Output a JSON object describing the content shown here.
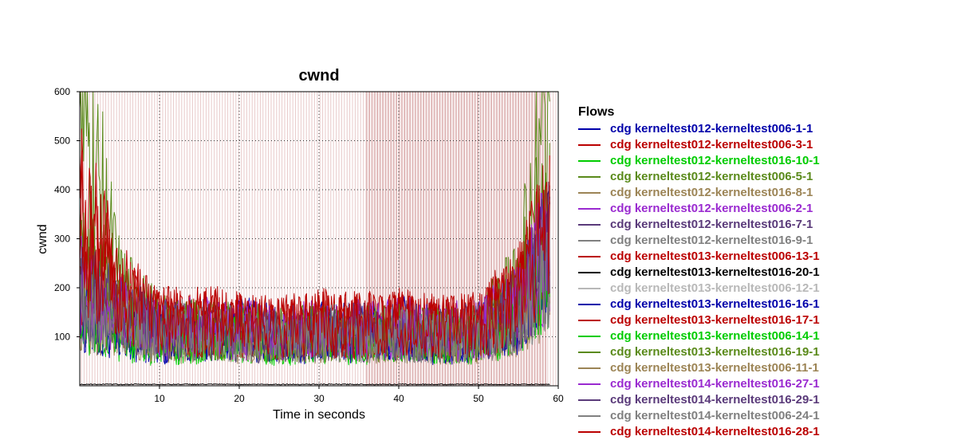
{
  "chart_data": {
    "type": "line",
    "title": "cwnd",
    "xlabel": "Time in seconds",
    "ylabel": "cwnd",
    "xlim": [
      0,
      60
    ],
    "ylim": [
      0,
      600
    ],
    "x_ticks": [
      10,
      20,
      30,
      40,
      50,
      60
    ],
    "y_ticks": [
      100,
      200,
      300,
      400,
      500,
      600
    ],
    "grid": true,
    "legend_title": "Flows",
    "legend_position": "right",
    "background_bands": "dense pale red vertical lines across the full time range",
    "series": [
      {
        "name": "cdg kerneltest012-kerneltest006-1-1",
        "color": "#0000aa",
        "x": [
          0,
          5,
          10,
          15,
          20,
          25,
          30,
          35,
          40,
          45,
          50,
          55,
          59
        ],
        "y": [
          150,
          120,
          100,
          110,
          120,
          105,
          115,
          110,
          120,
          105,
          110,
          150,
          300
        ]
      },
      {
        "name": "cdg kerneltest012-kerneltest006-3-1",
        "color": "#bb0000",
        "x": [
          0,
          5,
          10,
          15,
          20,
          25,
          30,
          35,
          40,
          45,
          50,
          55,
          59
        ],
        "y": [
          300,
          180,
          130,
          140,
          125,
          120,
          130,
          125,
          130,
          120,
          125,
          180,
          330
        ]
      },
      {
        "name": "cdg kerneltest012-kerneltest016-10-1",
        "color": "#00cc00",
        "x": [
          0,
          5,
          10,
          15,
          20,
          25,
          30,
          35,
          40,
          45,
          50,
          55,
          59
        ],
        "y": [
          130,
          110,
          95,
          100,
          105,
          95,
          100,
          100,
          105,
          95,
          100,
          140,
          250
        ]
      },
      {
        "name": "cdg kerneltest012-kerneltest006-5-1",
        "color": "#5a8a1a",
        "x": [
          0,
          5,
          10,
          15,
          20,
          25,
          30,
          35,
          40,
          45,
          50,
          55,
          59
        ],
        "y": [
          580,
          200,
          120,
          115,
          110,
          100,
          110,
          105,
          110,
          100,
          110,
          200,
          570
        ]
      },
      {
        "name": "cdg kerneltest012-kerneltest016-8-1",
        "color": "#9c8455",
        "x": [
          0,
          5,
          10,
          15,
          20,
          25,
          30,
          35,
          40,
          45,
          50,
          55,
          59
        ],
        "y": [
          160,
          130,
          100,
          105,
          100,
          95,
          100,
          95,
          100,
          95,
          100,
          130,
          220
        ]
      },
      {
        "name": "cdg kerneltest012-kerneltest006-2-1",
        "color": "#9a2ad0",
        "x": [
          0,
          5,
          10,
          15,
          20,
          25,
          30,
          35,
          40,
          45,
          50,
          55,
          59
        ],
        "y": [
          220,
          160,
          120,
          120,
          115,
          110,
          115,
          115,
          120,
          110,
          115,
          170,
          290
        ]
      },
      {
        "name": "cdg kerneltest012-kerneltest016-7-1",
        "color": "#5a3a7a",
        "x": [
          0,
          5,
          10,
          15,
          20,
          25,
          30,
          35,
          40,
          45,
          50,
          55,
          59
        ],
        "y": [
          180,
          140,
          110,
          110,
          105,
          100,
          105,
          105,
          110,
          100,
          105,
          150,
          260
        ]
      },
      {
        "name": "cdg kerneltest012-kerneltest016-9-1",
        "color": "#808080",
        "x": [
          0,
          5,
          10,
          15,
          20,
          25,
          30,
          35,
          40,
          45,
          50,
          55,
          59
        ],
        "y": [
          200,
          150,
          115,
          115,
          110,
          105,
          110,
          110,
          115,
          105,
          110,
          160,
          270
        ]
      },
      {
        "name": "cdg kerneltest013-kerneltest006-13-1",
        "color": "#bb0000",
        "x": [
          0,
          5,
          10,
          15,
          20,
          25,
          30,
          35,
          40,
          45,
          50,
          55,
          59
        ],
        "y": [
          380,
          190,
          130,
          130,
          125,
          120,
          125,
          125,
          130,
          120,
          125,
          190,
          340
        ]
      },
      {
        "name": "cdg kerneltest013-kerneltest016-20-1",
        "color": "#000000",
        "x": [
          0,
          5,
          10,
          15,
          20,
          25,
          30,
          35,
          40,
          45,
          50,
          55,
          59
        ],
        "y": [
          3,
          3,
          3,
          3,
          3,
          3,
          3,
          3,
          3,
          3,
          3,
          3,
          3
        ]
      },
      {
        "name": "cdg kerneltest013-kerneltest006-12-1",
        "color": "#b8b8b8",
        "x": [
          0,
          5,
          10,
          15,
          20,
          25,
          30,
          35,
          40,
          45,
          50,
          55,
          59
        ],
        "y": [
          170,
          140,
          110,
          110,
          105,
          100,
          105,
          105,
          110,
          100,
          105,
          150,
          240
        ]
      },
      {
        "name": "cdg kerneltest013-kerneltest016-16-1",
        "color": "#0000aa",
        "x": [
          0,
          5,
          10,
          15,
          20,
          25,
          30,
          35,
          40,
          45,
          50,
          55,
          59
        ],
        "y": [
          140,
          110,
          95,
          100,
          100,
          95,
          100,
          95,
          100,
          95,
          100,
          140,
          280
        ]
      },
      {
        "name": "cdg kerneltest013-kerneltest016-17-1",
        "color": "#bb0000",
        "x": [
          0,
          5,
          10,
          15,
          20,
          25,
          30,
          35,
          40,
          45,
          50,
          55,
          59
        ],
        "y": [
          260,
          170,
          125,
          125,
          120,
          115,
          120,
          120,
          125,
          115,
          120,
          175,
          310
        ]
      },
      {
        "name": "cdg kerneltest013-kerneltest006-14-1",
        "color": "#00cc00",
        "x": [
          0,
          5,
          10,
          15,
          20,
          25,
          30,
          35,
          40,
          45,
          50,
          55,
          59
        ],
        "y": [
          120,
          100,
          90,
          95,
          95,
          90,
          95,
          90,
          95,
          90,
          95,
          130,
          230
        ]
      },
      {
        "name": "cdg kerneltest013-kerneltest016-19-1",
        "color": "#5a8a1a",
        "x": [
          0,
          5,
          10,
          15,
          20,
          25,
          30,
          35,
          40,
          45,
          50,
          55,
          59
        ],
        "y": [
          240,
          160,
          115,
          115,
          110,
          105,
          110,
          105,
          110,
          105,
          110,
          180,
          420
        ]
      },
      {
        "name": "cdg kerneltest013-kerneltest006-11-1",
        "color": "#9c8455",
        "x": [
          0,
          5,
          10,
          15,
          20,
          25,
          30,
          35,
          40,
          45,
          50,
          55,
          59
        ],
        "y": [
          150,
          120,
          100,
          100,
          100,
          95,
          100,
          95,
          100,
          95,
          100,
          130,
          210
        ]
      },
      {
        "name": "cdg kerneltest014-kerneltest016-27-1",
        "color": "#9a2ad0",
        "x": [
          0,
          5,
          10,
          15,
          20,
          25,
          30,
          35,
          40,
          45,
          50,
          55,
          59
        ],
        "y": [
          190,
          145,
          115,
          115,
          110,
          105,
          110,
          110,
          115,
          105,
          110,
          165,
          300
        ]
      },
      {
        "name": "cdg kerneltest014-kerneltest016-29-1",
        "color": "#5a3a7a",
        "x": [
          0,
          5,
          10,
          15,
          20,
          25,
          30,
          35,
          40,
          45,
          50,
          55,
          59
        ],
        "y": [
          200,
          150,
          115,
          115,
          110,
          105,
          110,
          110,
          115,
          105,
          110,
          160,
          280
        ]
      },
      {
        "name": "cdg kerneltest014-kerneltest006-24-1",
        "color": "#808080",
        "x": [
          0,
          5,
          10,
          15,
          20,
          25,
          30,
          35,
          40,
          45,
          50,
          55,
          59
        ],
        "y": [
          160,
          130,
          105,
          105,
          100,
          100,
          100,
          100,
          105,
          100,
          100,
          140,
          230
        ]
      },
      {
        "name": "cdg kerneltest014-kerneltest016-28-1",
        "color": "#bb0000",
        "x": [
          0,
          5,
          10,
          15,
          20,
          25,
          30,
          35,
          40,
          45,
          50,
          55,
          59
        ],
        "y": [
          330,
          180,
          130,
          130,
          125,
          120,
          125,
          125,
          130,
          120,
          125,
          185,
          320
        ]
      }
    ]
  }
}
